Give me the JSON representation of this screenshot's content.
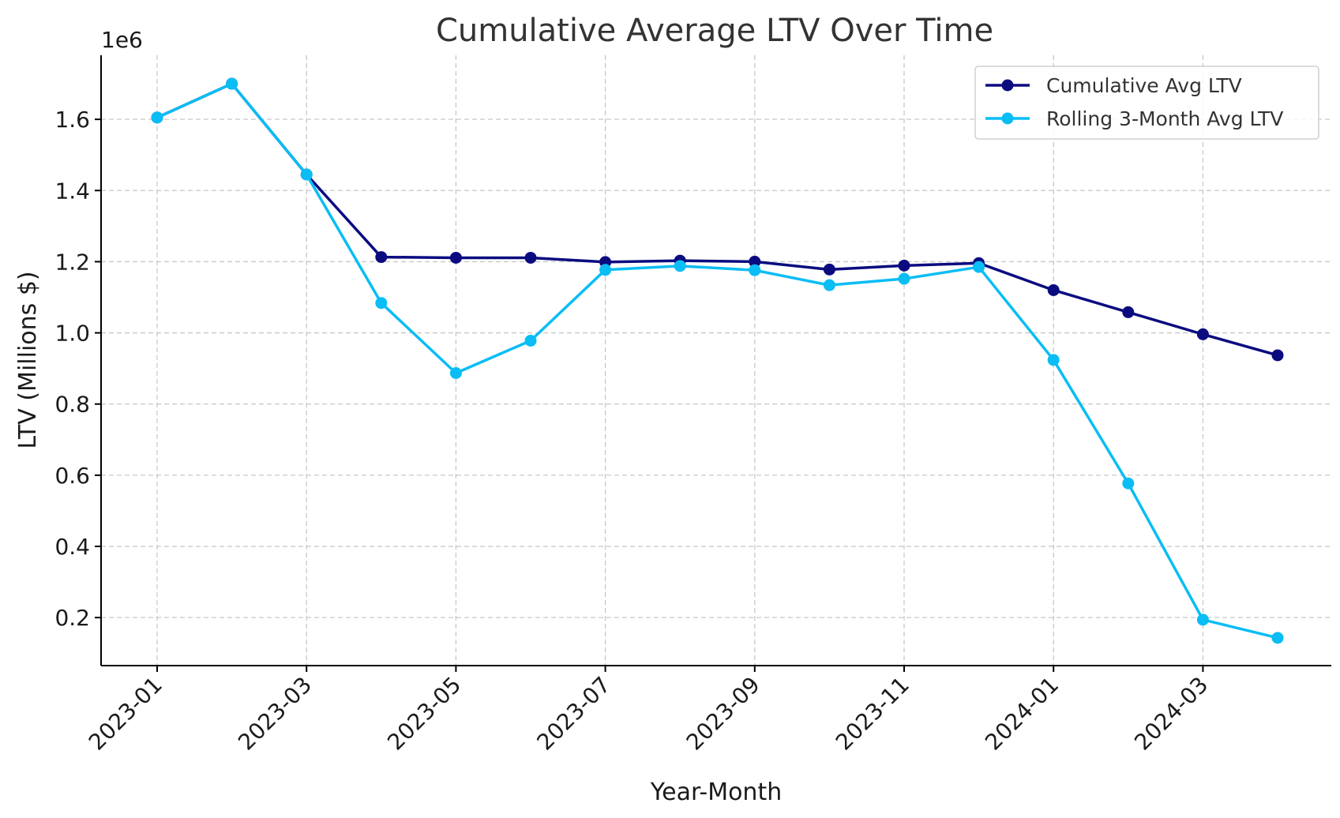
{
  "chart_data": {
    "type": "line",
    "title": "Cumulative Average LTV Over Time",
    "xlabel": "Year-Month",
    "ylabel": "LTV (Millions $)",
    "y_offset_label": "1e6",
    "x": [
      "2023-01",
      "2023-02",
      "2023-03",
      "2023-04",
      "2023-05",
      "2023-06",
      "2023-07",
      "2023-08",
      "2023-09",
      "2023-10",
      "2023-11",
      "2023-12",
      "2024-01",
      "2024-02",
      "2024-03",
      "2024-04"
    ],
    "x_tick_labels": [
      "2023-01",
      "2023-03",
      "2023-05",
      "2023-07",
      "2023-09",
      "2023-11",
      "2024-01",
      "2024-03"
    ],
    "y_ticks": [
      0.2,
      0.4,
      0.6,
      0.8,
      1.0,
      1.2,
      1.4,
      1.6
    ],
    "y_tick_labels": [
      "0.2",
      "0.4",
      "0.6",
      "0.8",
      "1.0",
      "1.2",
      "1.4",
      "1.6"
    ],
    "ylim": [
      0.065,
      1.78
    ],
    "grid": true,
    "legend_position": "top-right",
    "series": [
      {
        "name": "Cumulative Avg LTV",
        "color": "#0b0b80",
        "values": [
          1.605,
          1.7,
          1.445,
          1.213,
          1.211,
          1.211,
          1.199,
          1.203,
          1.2,
          1.178,
          1.189,
          1.196,
          1.12,
          1.058,
          0.996,
          0.937
        ]
      },
      {
        "name": "Rolling 3-Month Avg LTV",
        "color": "#0abdf5",
        "values": [
          1.605,
          1.7,
          1.445,
          1.084,
          0.887,
          0.978,
          1.177,
          1.188,
          1.176,
          1.134,
          1.152,
          1.185,
          0.924,
          0.577,
          0.194,
          0.143
        ]
      }
    ]
  }
}
